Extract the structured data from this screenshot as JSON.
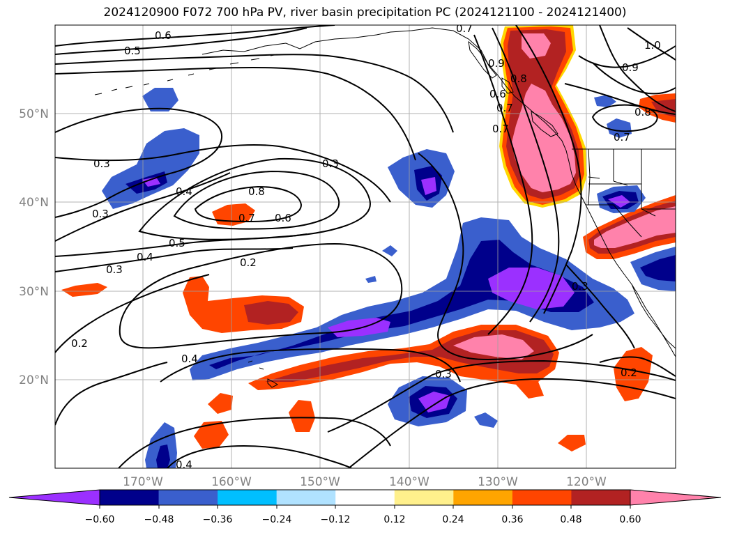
{
  "title": "2024120900 F072 700 hPa PV, river basin precipitation PC (2024121100 - 2024121400)",
  "map": {
    "lat_labels": [
      "50°N",
      "40°N",
      "30°N",
      "20°N"
    ],
    "lon_labels": [
      "170°W",
      "160°W",
      "150°W",
      "140°W",
      "130°W",
      "120°W"
    ],
    "contour_labels": [
      "0.6",
      "0.5",
      "0.7",
      "1.0",
      "0.9",
      "0.8",
      "0.3",
      "0.3",
      "0.4",
      "0.8",
      "0.7",
      "0.6",
      "0.3",
      "0.5",
      "0.4",
      "0.3",
      "0.2",
      "0.2",
      "0.4",
      "0.3",
      "0.3",
      "0.2",
      "0.4",
      "0.7",
      "0.6",
      "0.7",
      "0.9",
      "0.8",
      "0.7"
    ]
  },
  "colorbar": {
    "ticks": [
      "−0.60",
      "−0.48",
      "−0.36",
      "−0.24",
      "−0.12",
      "0.12",
      "0.24",
      "0.36",
      "0.48",
      "0.60"
    ],
    "colors": [
      "#9b30ff",
      "#00008b",
      "#3a5fcd",
      "#00bfff",
      "#b0e2ff",
      "#ffffff",
      "#fff08c",
      "#ffa500",
      "#ff4500",
      "#b22222",
      "#ff82ab",
      "#ff82ab"
    ],
    "extend_min_color": "#9b30ff",
    "extend_max_color": "#ff82ab"
  }
}
